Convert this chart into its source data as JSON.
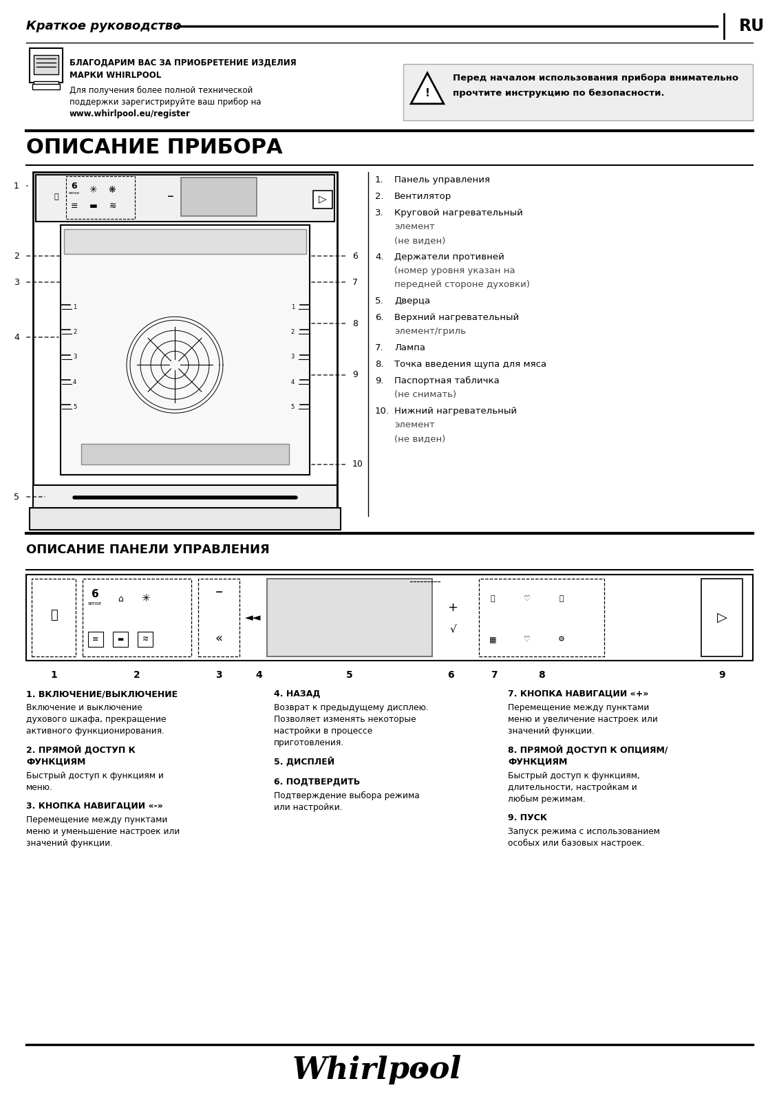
{
  "title_header": "Краткое руководство",
  "lang": "RU",
  "thank_you_bold1": "БЛАГОДАРИМ ВАС ЗА ПРИОБРЕТЕНИЕ ИЗДЕЛИЯ",
  "thank_you_bold2": "МАРКИ WHIRLPOOL",
  "thank_you_line1": "Для получения более полной технической",
  "thank_you_line2": "поддержки зарегистрируйте ваш прибор на",
  "thank_you_bold3": "www.whirlpool.eu/register",
  "warning_text1": "Перед началом использования прибора внимательно",
  "warning_text2": "прочтите инструкцию по безопасности.",
  "section1_title": "ОПИСАНИЕ ПРИБОРА",
  "oven_parts": [
    {
      "num": "1.",
      "text": "Панель управления",
      "sub": ""
    },
    {
      "num": "2.",
      "text": "Вентилятор",
      "sub": ""
    },
    {
      "num": "3.",
      "text": "Круговой нагревательный",
      "sub": "элемент\n(не виден)"
    },
    {
      "num": "4.",
      "text": "Держатели противней",
      "sub": "(номер уровня указан на\nпередней стороне духовки)"
    },
    {
      "num": "5.",
      "text": "Дверца",
      "sub": ""
    },
    {
      "num": "6.",
      "text": "Верхний нагревательный",
      "sub": "элемент/гриль"
    },
    {
      "num": "7.",
      "text": "Лампа",
      "sub": ""
    },
    {
      "num": "8.",
      "text": "Точка введения щупа для мяса",
      "sub": ""
    },
    {
      "num": "9.",
      "text": "Паспортная табличка",
      "sub": "(не снимать)"
    },
    {
      "num": "10.",
      "text": "Нижний нагревательный",
      "sub": "элемент\n(не виден)"
    }
  ],
  "section2_title": "ОПИСАНИЕ ПАНЕЛИ УПРАВЛЕНИЯ",
  "panel_items": [
    {
      "num": "1",
      "title": "1. ВКЛЮЧЕНИЕ/ВЫКЛЮЧЕНИЕ",
      "desc": "Включение и выключение\nдухового шкафа, прекращение\nактивного функционирования."
    },
    {
      "num": "2",
      "title": "2. ПРЯМОЙ ДОСТУП К\nФУНКЦИЯМ",
      "desc": "Быстрый доступ к функциям и\nменю."
    },
    {
      "num": "3",
      "title": "3. КНОПКА НАВИГАЦИИ «-»",
      "desc": "Перемещение между пунктами\nменю и уменьшение настроек или\nзначений функции."
    },
    {
      "num": "4",
      "title": "4. НАЗАД",
      "desc": "Возврат к предыдущему дисплею.\nПозволяет изменять некоторые\nнастройки в процессе\nприготовления."
    },
    {
      "num": "5",
      "title": "5. ДИСПЛЕЙ",
      "desc": ""
    },
    {
      "num": "6",
      "title": "6. ПОДТВЕРДИТЬ",
      "desc": "Подтверждение выбора режима\nили настройки."
    },
    {
      "num": "7",
      "title": "7. КНОПКА НАВИГАЦИИ «+»",
      "desc": "Перемещение между пунктами\nменю и увеличение настроек или\nзначений функции."
    },
    {
      "num": "8",
      "title": "8. ПРЯМОЙ ДОСТУП К ОПЦИЯМ/\nФУНКЦИЯМ",
      "desc": "Быстрый доступ к функциям,\nдлительности, настройкам и\nлюбым режимам."
    },
    {
      "num": "9",
      "title": "9. ПУСК",
      "desc": "Запуск режима с использованием\nособых или базовых настроек."
    }
  ],
  "bg_color": "#ffffff"
}
